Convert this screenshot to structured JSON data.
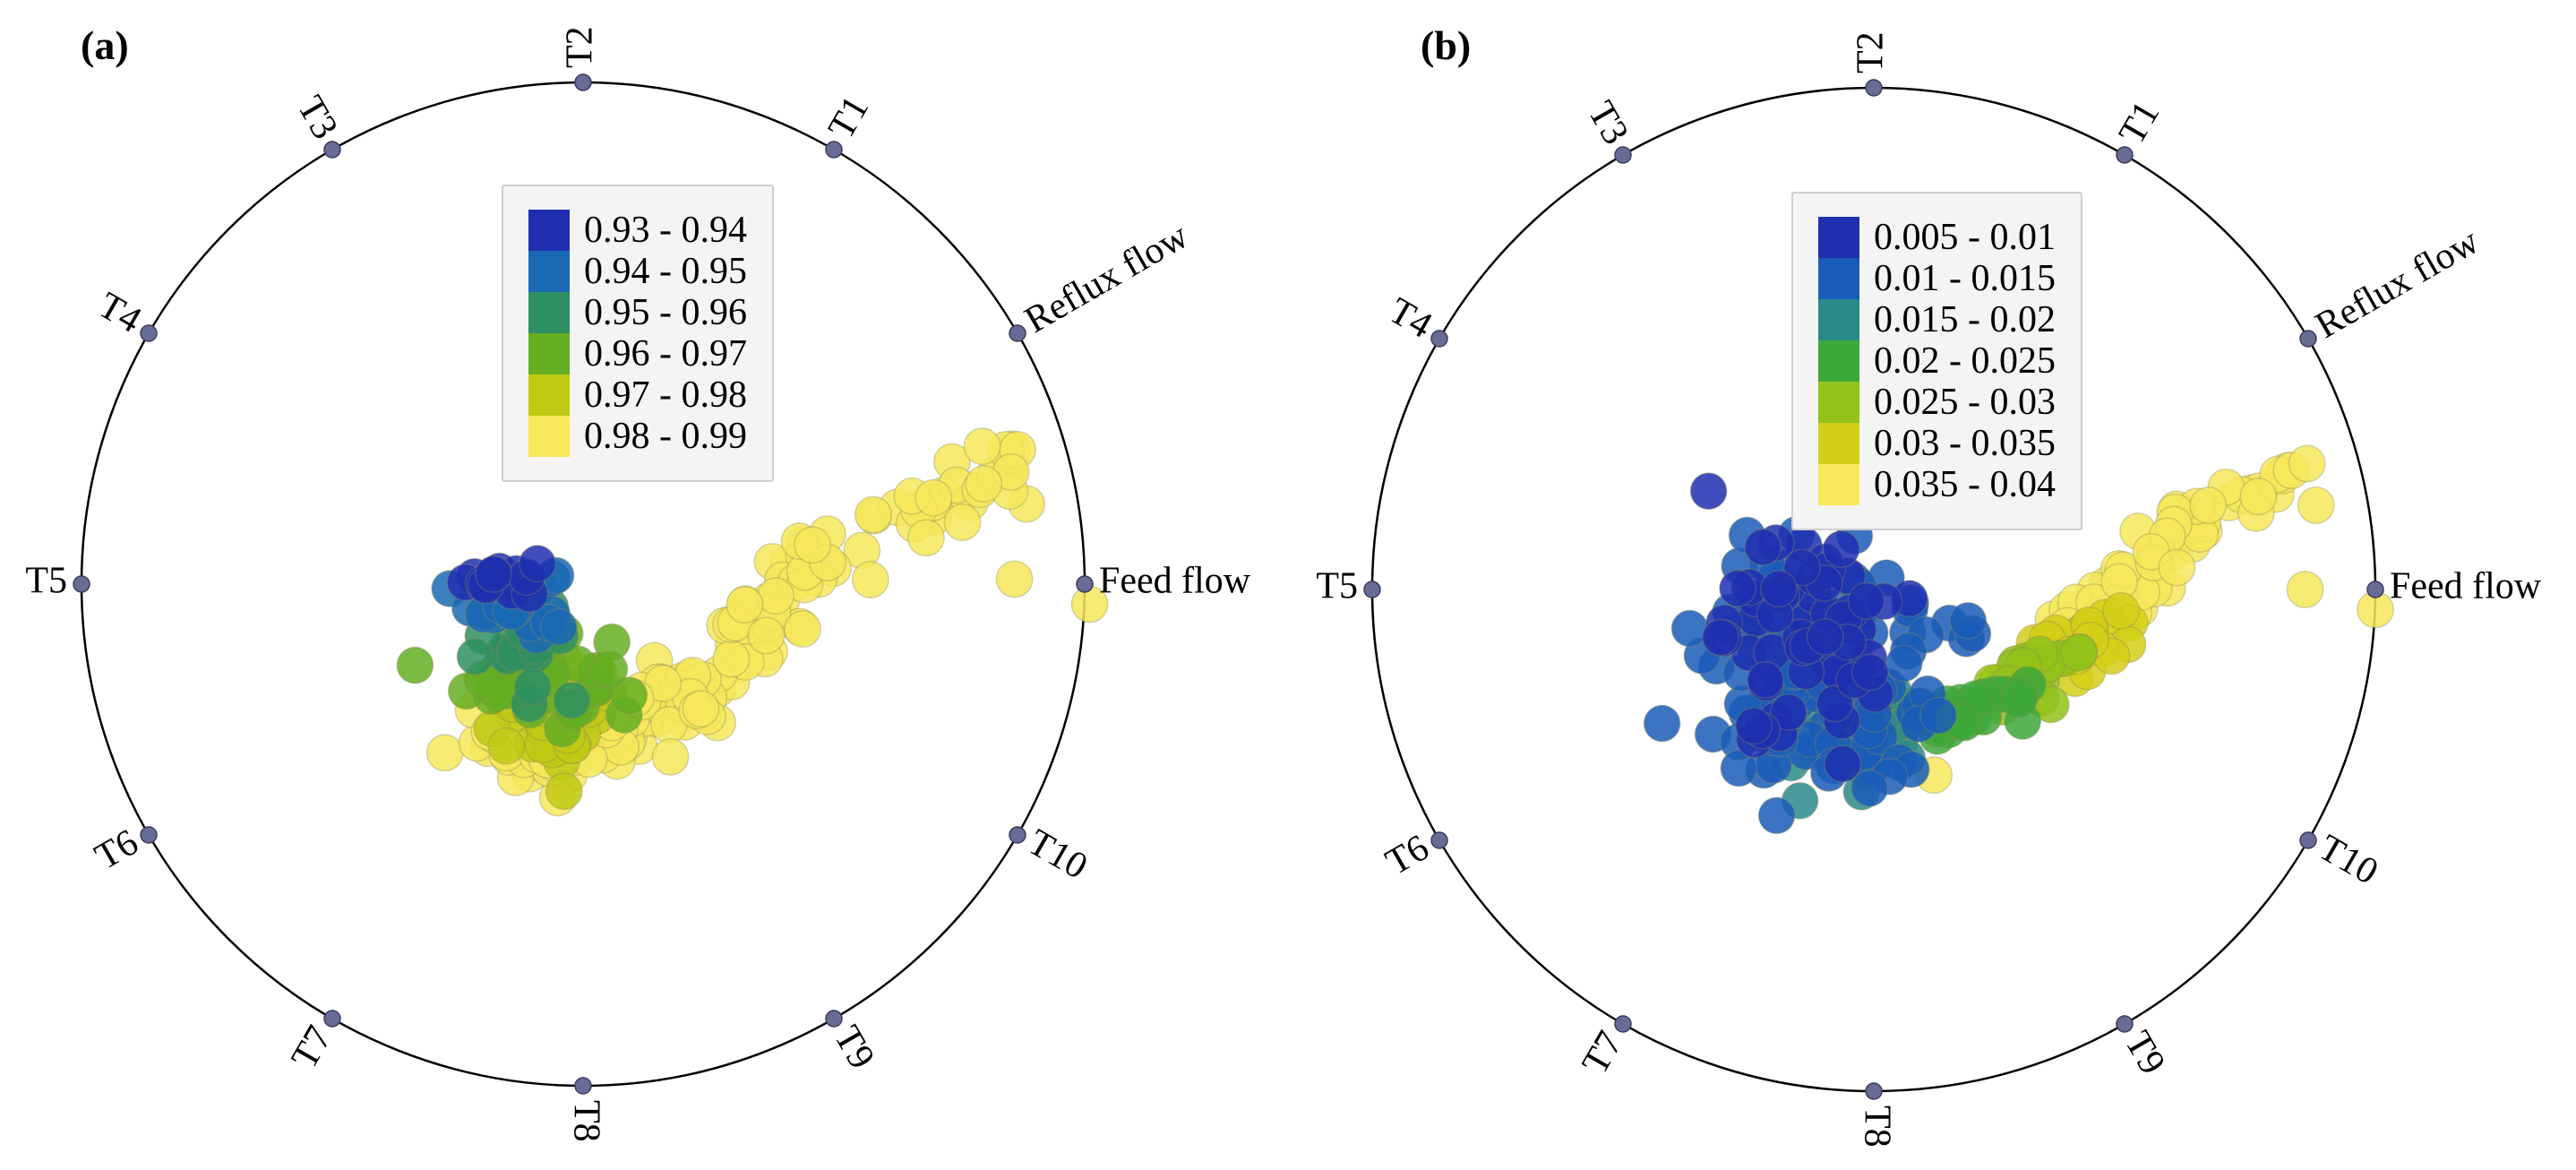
{
  "chart_data": [
    {
      "type": "scatter",
      "subtype": "radviz",
      "panel_label": "(a)",
      "anchors": [
        "Feed flow",
        "Reflux flow",
        "T1",
        "T2",
        "T3",
        "T4",
        "T5",
        "T6",
        "T7",
        "T8",
        "T9",
        "T10"
      ],
      "legend_placement": "top-center",
      "legend": [
        {
          "label": "0.93 - 0.94",
          "color": "#1f2fb0"
        },
        {
          "label": "0.94 - 0.95",
          "color": "#1a68b4"
        },
        {
          "label": "0.95 - 0.96",
          "color": "#2e8f62"
        },
        {
          "label": "0.96 - 0.97",
          "color": "#64ae22"
        },
        {
          "label": "0.97 - 0.98",
          "color": "#bfc914"
        },
        {
          "label": "0.98 - 0.99",
          "color": "#f6e85a"
        }
      ],
      "point_groups": [
        {
          "class": 0,
          "cx": -0.16,
          "cy": 0.01,
          "sx": 0.035,
          "sy": 0.02,
          "n": 14
        },
        {
          "class": 1,
          "cx": -0.14,
          "cy": -0.03,
          "sx": 0.05,
          "sy": 0.035,
          "n": 24
        },
        {
          "class": 2,
          "cx": -0.11,
          "cy": -0.11,
          "sx": 0.06,
          "sy": 0.045,
          "n": 22
        },
        {
          "class": 3,
          "cx": -0.09,
          "cy": -0.18,
          "sx": 0.07,
          "sy": 0.05,
          "n": 38
        },
        {
          "class": 4,
          "cx": -0.07,
          "cy": -0.26,
          "sx": 0.07,
          "sy": 0.05,
          "n": 32
        }
      ],
      "point_paths": [
        {
          "class": 5,
          "n": 160,
          "spread": 0.035,
          "path": [
            [
              -0.12,
              -0.33
            ],
            [
              0.05,
              -0.29
            ],
            [
              0.25,
              -0.2
            ],
            [
              0.45,
              0.02
            ],
            [
              0.88,
              0.25
            ]
          ]
        },
        {
          "class": 5,
          "n": 40,
          "spread": 0.05,
          "path": [
            [
              -0.18,
              -0.3
            ],
            [
              0.02,
              -0.28
            ]
          ]
        }
      ],
      "point_singles": [
        {
          "class": 5,
          "x": 0.86,
          "y": 0.01
        },
        {
          "class": 5,
          "x": 1.01,
          "y": -0.04
        }
      ]
    },
    {
      "type": "scatter",
      "subtype": "radviz",
      "panel_label": "(b)",
      "anchors": [
        "Feed flow",
        "Reflux flow",
        "T1",
        "T2",
        "T3",
        "T4",
        "T5",
        "T6",
        "T7",
        "T8",
        "T9",
        "T10"
      ],
      "legend_placement": "top-center",
      "legend": [
        {
          "label": "0.005 - 0.01",
          "color": "#1f2fb0"
        },
        {
          "label": "0.01 - 0.015",
          "color": "#1a5cb8"
        },
        {
          "label": "0.015 - 0.02",
          "color": "#2a8a8a"
        },
        {
          "label": "0.02 - 0.025",
          "color": "#3ea83a"
        },
        {
          "label": "0.025 - 0.03",
          "color": "#93c21a"
        },
        {
          "label": "0.03 - 0.035",
          "color": "#d3cf18"
        },
        {
          "label": "0.035 - 0.04",
          "color": "#f6e85a"
        }
      ],
      "point_groups": [
        {
          "class": 0,
          "cx": -0.13,
          "cy": -0.12,
          "sx": 0.09,
          "sy": 0.11,
          "n": 60
        },
        {
          "class": 1,
          "cx": -0.09,
          "cy": -0.17,
          "sx": 0.12,
          "sy": 0.12,
          "n": 110
        },
        {
          "class": 2,
          "cx": -0.04,
          "cy": -0.29,
          "sx": 0.07,
          "sy": 0.07,
          "n": 24
        }
      ],
      "point_paths": [
        {
          "class": 3,
          "n": 30,
          "spread": 0.03,
          "path": [
            [
              0.0,
              -0.24
            ],
            [
              0.16,
              -0.25
            ],
            [
              0.3,
              -0.2
            ]
          ]
        },
        {
          "class": 4,
          "n": 20,
          "spread": 0.025,
          "path": [
            [
              0.18,
              -0.22
            ],
            [
              0.42,
              -0.12
            ]
          ]
        },
        {
          "class": 5,
          "n": 26,
          "spread": 0.03,
          "path": [
            [
              0.3,
              -0.16
            ],
            [
              0.55,
              -0.05
            ]
          ]
        },
        {
          "class": 6,
          "n": 55,
          "spread": 0.03,
          "path": [
            [
              0.42,
              -0.07
            ],
            [
              0.6,
              0.09
            ],
            [
              0.87,
              0.25
            ]
          ]
        }
      ],
      "point_singles": [
        {
          "class": 6,
          "x": 0.86,
          "y": 0.0
        },
        {
          "class": 6,
          "x": 1.0,
          "y": -0.04
        },
        {
          "class": 6,
          "x": 0.12,
          "y": -0.37
        }
      ]
    }
  ]
}
